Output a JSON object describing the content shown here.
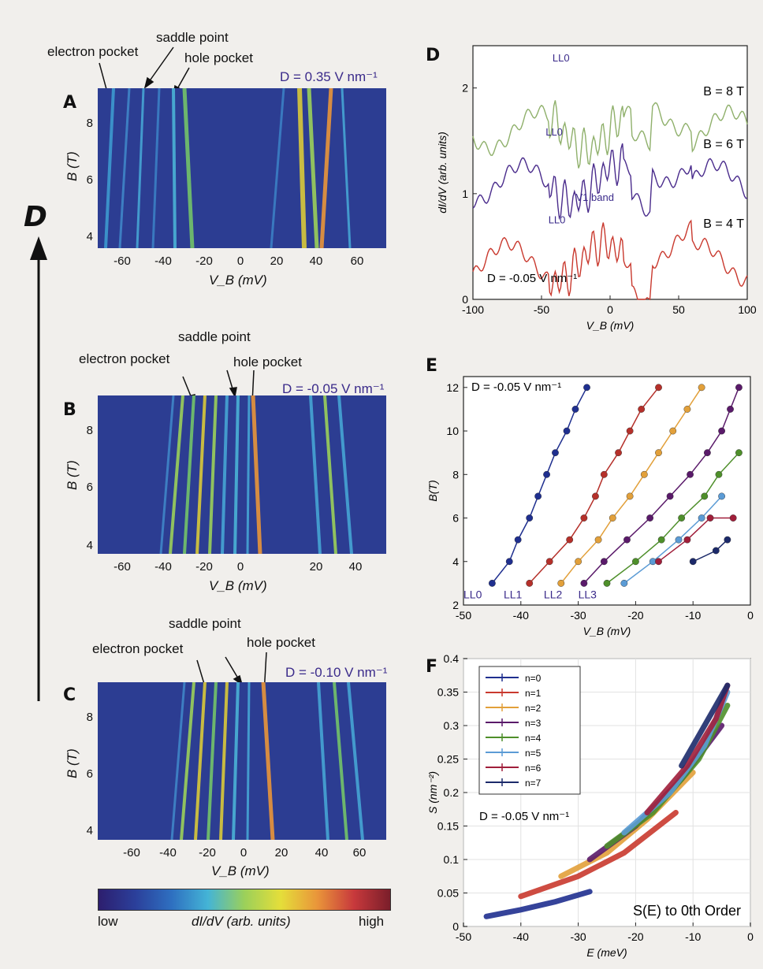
{
  "figure": {
    "big_axis_label": "D",
    "colorbar": {
      "low": "low",
      "label": "dI/dV (arb. units)",
      "high": "high",
      "colors": [
        "#2d1e6e",
        "#2b3f9a",
        "#2e6fc0",
        "#44b4d6",
        "#9bd05a",
        "#e5de3a",
        "#e9953a",
        "#c8393c",
        "#7a1e2a"
      ]
    }
  },
  "panels": {
    "A": {
      "letter": "A",
      "d_label": "D = 0.35 V nm⁻¹",
      "ylabel": "B (T)",
      "xlabel": "V_B (mV)",
      "yticks": [
        "8",
        "6",
        "4"
      ],
      "xticks": [
        "-60",
        "-40",
        "-20",
        "0",
        "20",
        "40",
        "60"
      ],
      "annotations": {
        "electron": "electron pocket",
        "saddle": "saddle point",
        "hole": "hole pocket"
      }
    },
    "B": {
      "letter": "B",
      "d_label": "D = -0.05 V nm⁻¹",
      "ylabel": "B (T)",
      "xlabel": "V_B (mV)",
      "yticks": [
        "8",
        "6",
        "4"
      ],
      "xticks": [
        "-60",
        "-40",
        "-20",
        "0",
        "20",
        "40",
        "60"
      ],
      "annotations": {
        "electron": "electron pocket",
        "saddle": "saddle point",
        "hole": "hole pocket"
      }
    },
    "C": {
      "letter": "C",
      "d_label": "D = -0.10 V nm⁻¹",
      "ylabel": "B (T)",
      "xlabel": "V_B (mV)",
      "yticks": [
        "8",
        "6",
        "4"
      ],
      "xticks": [
        "-60",
        "-40",
        "-20",
        "0",
        "20",
        "40",
        "60"
      ],
      "annotations": {
        "electron": "electron pocket",
        "saddle": "saddle point",
        "hole": "hole pocket"
      }
    }
  },
  "chart_data": [
    {
      "id": "D",
      "type": "line",
      "letter": "D",
      "xlabel": "V_B (mV)",
      "ylabel": "dI/dV (arb. units)",
      "xlim": [
        -100,
        100
      ],
      "ylim": [
        0,
        2.4
      ],
      "xticks": [
        "-100",
        "-50",
        "0",
        "50",
        "100"
      ],
      "yticks": [
        "0",
        "1",
        "2"
      ],
      "d_label": "D = -0.05 V nm⁻¹",
      "series": [
        {
          "name": "B = 8 T",
          "color": "#8fb06b",
          "offset": 1.6
        },
        {
          "name": "B = 6 T",
          "color": "#4a2c8c",
          "offset": 1.1
        },
        {
          "name": "B = 4 T",
          "color": "#c9392e",
          "offset": 0.35
        }
      ],
      "annotations": [
        "LL0",
        "LL0",
        "LL0",
        "V1 band"
      ]
    },
    {
      "id": "E",
      "type": "scatter",
      "letter": "E",
      "xlabel": "V_B (mV)",
      "ylabel": "B(T)",
      "xlim": [
        -50,
        0
      ],
      "ylim": [
        2,
        12.5
      ],
      "xticks": [
        "-50",
        "-40",
        "-30",
        "-20",
        "-10",
        "0"
      ],
      "yticks": [
        "2",
        "4",
        "6",
        "8",
        "10",
        "12"
      ],
      "d_label": "D = -0.05 V nm⁻¹",
      "ll_labels": [
        "LL0",
        "LL1",
        "LL2",
        "LL3"
      ],
      "series": [
        {
          "color": "#1f2f8f",
          "points": [
            [
              -45,
              3
            ],
            [
              -42,
              4
            ],
            [
              -40.5,
              5
            ],
            [
              -38.5,
              6
            ],
            [
              -37,
              7
            ],
            [
              -35.5,
              8
            ],
            [
              -34,
              9
            ],
            [
              -32,
              10
            ],
            [
              -30.5,
              11
            ],
            [
              -28.5,
              12
            ]
          ]
        },
        {
          "color": "#b5302a",
          "points": [
            [
              -38.5,
              3
            ],
            [
              -35,
              4
            ],
            [
              -31.5,
              5
            ],
            [
              -29,
              6
            ],
            [
              -27,
              7
            ],
            [
              -25.5,
              8
            ],
            [
              -23,
              9
            ],
            [
              -21,
              10
            ],
            [
              -19,
              11
            ],
            [
              -16,
              12
            ]
          ]
        },
        {
          "color": "#e2a03a",
          "points": [
            [
              -33,
              3
            ],
            [
              -30,
              4
            ],
            [
              -26.5,
              5
            ],
            [
              -24,
              6
            ],
            [
              -21,
              7
            ],
            [
              -18.5,
              8
            ],
            [
              -16,
              9
            ],
            [
              -13.5,
              10
            ],
            [
              -11,
              11
            ],
            [
              -8.5,
              12
            ]
          ]
        },
        {
          "color": "#5a1a6a",
          "points": [
            [
              -29,
              3
            ],
            [
              -25.5,
              4
            ],
            [
              -21.5,
              5
            ],
            [
              -17.5,
              6
            ],
            [
              -14,
              7
            ],
            [
              -10.5,
              8
            ],
            [
              -7.5,
              9
            ],
            [
              -5,
              10
            ],
            [
              -3.5,
              11
            ],
            [
              -2,
              12
            ]
          ]
        },
        {
          "color": "#4e8f2a",
          "points": [
            [
              -25,
              3
            ],
            [
              -20,
              4
            ],
            [
              -15.5,
              5
            ],
            [
              -12,
              6
            ],
            [
              -8,
              7
            ],
            [
              -5.5,
              8
            ],
            [
              -2,
              9
            ]
          ]
        },
        {
          "color": "#5b9bd5",
          "points": [
            [
              -22,
              3
            ],
            [
              -17,
              4
            ],
            [
              -12.5,
              5
            ],
            [
              -8.5,
              6
            ],
            [
              -5,
              7
            ]
          ]
        },
        {
          "color": "#a01e3a",
          "points": [
            [
              -16,
              4
            ],
            [
              -11,
              5
            ],
            [
              -7,
              6
            ],
            [
              -3,
              6
            ]
          ]
        },
        {
          "color": "#1c2a6a",
          "points": [
            [
              -10,
              4
            ],
            [
              -6,
              4.5
            ],
            [
              -4,
              5
            ]
          ]
        }
      ]
    },
    {
      "id": "F",
      "type": "line",
      "letter": "F",
      "xlabel": "E (meV)",
      "ylabel": "S (nm⁻²)",
      "xlim": [
        -50,
        0
      ],
      "ylim": [
        0,
        0.4
      ],
      "xticks": [
        "-50",
        "-40",
        "-30",
        "-20",
        "-10",
        "0"
      ],
      "yticks": [
        "0",
        "0.05",
        "0.1",
        "0.15",
        "0.2",
        "0.25",
        "0.3",
        "0.35",
        "0.4"
      ],
      "d_label": "D = -0.05 V nm⁻¹",
      "note": "S(E) to 0th Order",
      "series": [
        {
          "name": "n=0",
          "color": "#1f2f8f",
          "points": [
            [
              -46,
              0.015
            ],
            [
              -40,
              0.025
            ],
            [
              -34,
              0.037
            ],
            [
              -28,
              0.052
            ]
          ]
        },
        {
          "name": "n=1",
          "color": "#c9392e",
          "points": [
            [
              -40,
              0.045
            ],
            [
              -30,
              0.075
            ],
            [
              -22,
              0.11
            ],
            [
              -13,
              0.17
            ]
          ]
        },
        {
          "name": "n=2",
          "color": "#e2a03a",
          "points": [
            [
              -33,
              0.075
            ],
            [
              -25,
              0.11
            ],
            [
              -18,
              0.16
            ],
            [
              -10,
              0.23
            ]
          ]
        },
        {
          "name": "n=3",
          "color": "#5a1a6a",
          "points": [
            [
              -28,
              0.1
            ],
            [
              -20,
              0.15
            ],
            [
              -12,
              0.22
            ],
            [
              -5,
              0.3
            ]
          ]
        },
        {
          "name": "n=4",
          "color": "#4e8f2a",
          "points": [
            [
              -25,
              0.12
            ],
            [
              -17,
              0.17
            ],
            [
              -9,
              0.25
            ],
            [
              -4,
              0.33
            ]
          ]
        },
        {
          "name": "n=5",
          "color": "#5b9bd5",
          "points": [
            [
              -22,
              0.14
            ],
            [
              -14,
              0.2
            ],
            [
              -8,
              0.27
            ],
            [
              -4,
              0.35
            ]
          ]
        },
        {
          "name": "n=6",
          "color": "#a01e3a",
          "points": [
            [
              -18,
              0.17
            ],
            [
              -11,
              0.24
            ],
            [
              -6,
              0.31
            ],
            [
              -4,
              0.36
            ]
          ]
        },
        {
          "name": "n=7",
          "color": "#1c2a6a",
          "points": [
            [
              -12,
              0.24
            ],
            [
              -8,
              0.3
            ],
            [
              -5,
              0.345
            ],
            [
              -4,
              0.36
            ]
          ]
        }
      ]
    }
  ]
}
